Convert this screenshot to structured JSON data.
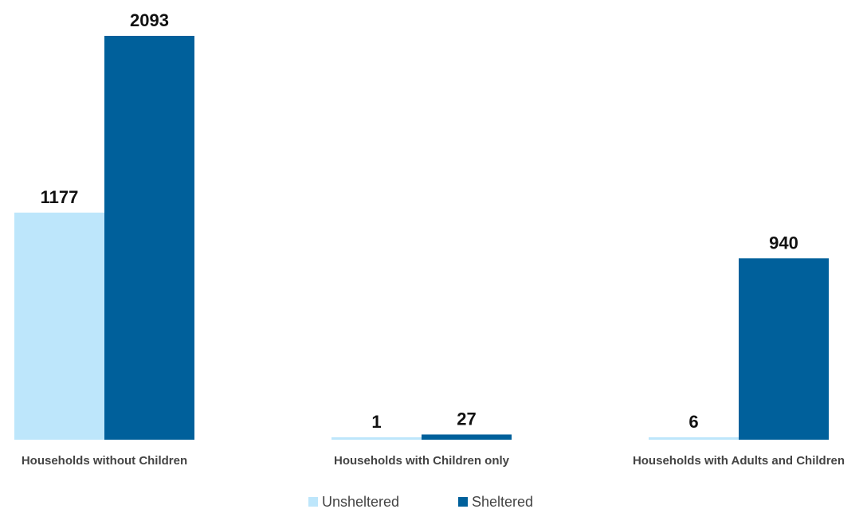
{
  "chart_data": {
    "type": "bar",
    "categories": [
      "Households without Children",
      "Households with Children only",
      "Households with Adults and Children"
    ],
    "series": [
      {
        "name": "Unsheltered",
        "values": [
          1177,
          1,
          6
        ],
        "color": "#bde6fb"
      },
      {
        "name": "Sheltered",
        "values": [
          2093,
          27,
          940
        ],
        "color": "#00609b"
      }
    ],
    "ylim": [
      0,
      2093
    ],
    "grid": false,
    "legend_position": "bottom"
  }
}
